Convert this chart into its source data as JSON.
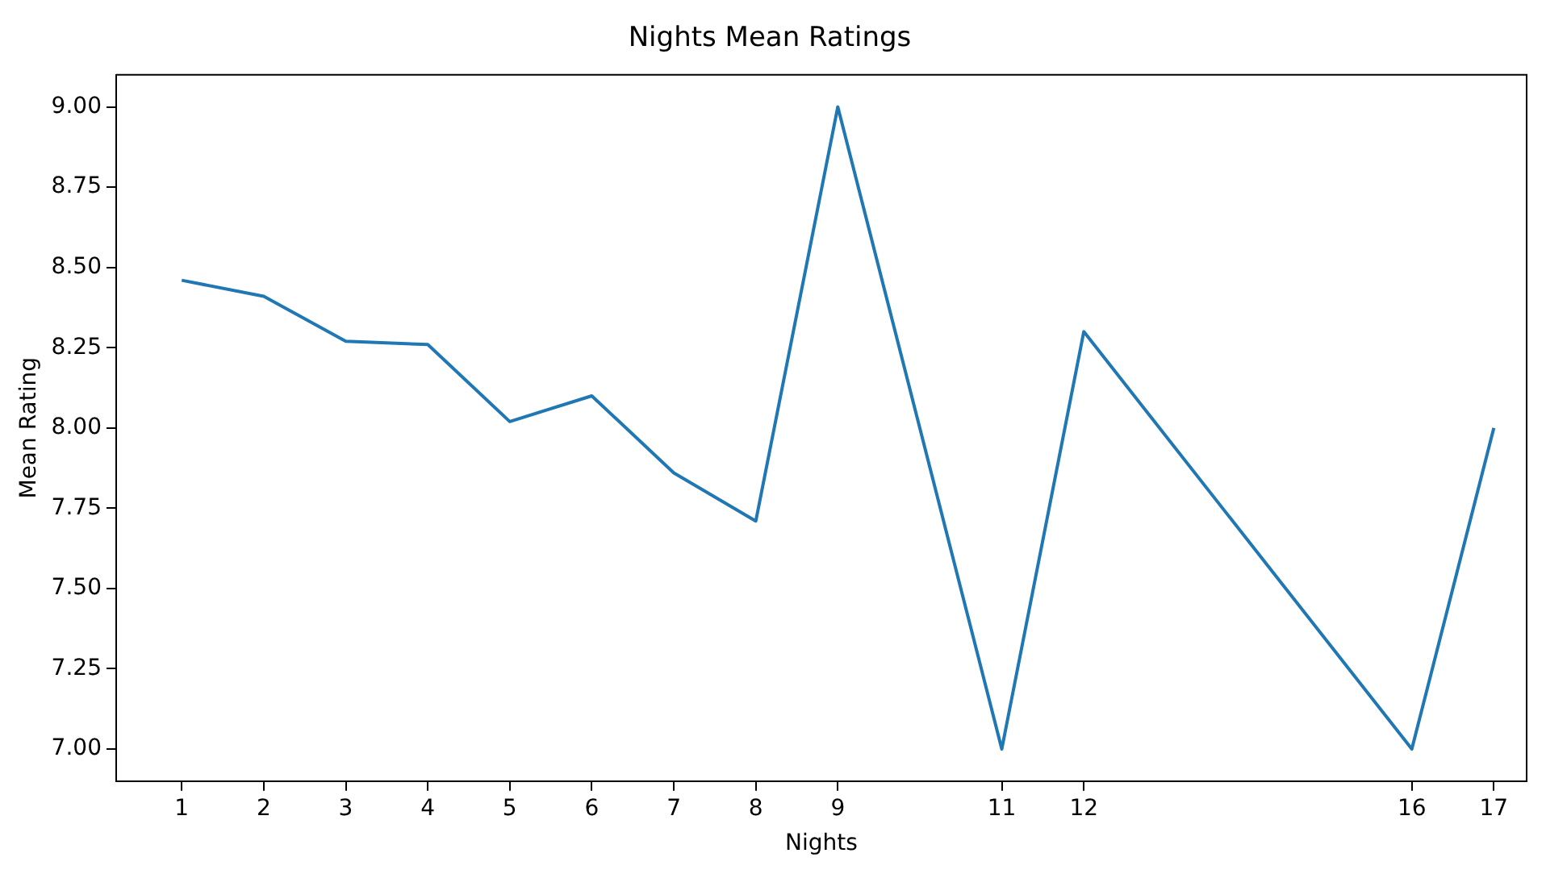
{
  "chart_data": {
    "type": "line",
    "title": "Nights Mean Ratings",
    "xlabel": "Nights",
    "ylabel": "Mean Rating",
    "x": [
      1,
      2,
      3,
      4,
      5,
      6,
      7,
      8,
      9,
      11,
      12,
      16,
      17
    ],
    "series": [
      {
        "color": "#1f77b4",
        "values": [
          8.46,
          8.41,
          8.27,
          8.26,
          8.02,
          8.1,
          7.86,
          7.71,
          9.0,
          7.0,
          8.3,
          7.0,
          8.0
        ]
      }
    ],
    "xlim": [
      0.2,
      17.4
    ],
    "xticks": [
      1,
      2,
      3,
      4,
      5,
      6,
      7,
      8,
      9,
      11,
      12,
      16,
      17
    ],
    "ylim": [
      6.9,
      9.1
    ],
    "yticks": [
      {
        "value": 7,
        "label": "7.00"
      },
      {
        "value": 7.25,
        "label": "7.25"
      },
      {
        "value": 7.5,
        "label": "7.50"
      },
      {
        "value": 7.75,
        "label": "7.75"
      },
      {
        "value": 8,
        "label": "8.00"
      },
      {
        "value": 8.25,
        "label": "8.25"
      },
      {
        "value": 8.5,
        "label": "8.50"
      },
      {
        "value": 8.75,
        "label": "8.75"
      },
      {
        "value": 9,
        "label": "9.00"
      }
    ],
    "grid": false,
    "legend": false,
    "marker": "none",
    "line_style": "solid"
  }
}
